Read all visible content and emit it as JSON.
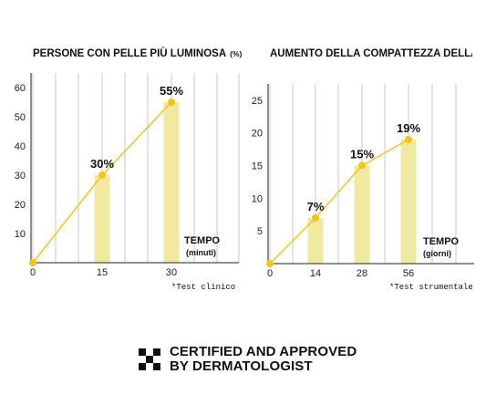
{
  "colors": {
    "bar": "#f2e9a1",
    "line": "#f4c518",
    "grid": "#c8c8c8",
    "axis": "#222222",
    "text": "#111111"
  },
  "chart_data": [
    {
      "type": "bar",
      "title": "PERSONE CON PELLE PIÙ LUMINOSA",
      "title_unit": "(%)",
      "xlabel": "TEMPO",
      "xunit": "(minuti)",
      "x": [
        0,
        15,
        30
      ],
      "series": [
        {
          "values": [
            0,
            30,
            55
          ]
        }
      ],
      "data_labels": [
        "",
        "30%",
        "55%"
      ],
      "yticks": [
        10,
        20,
        30,
        40,
        50,
        60
      ],
      "xticks": [
        "0",
        "15",
        "30"
      ],
      "ylim": [
        0,
        65
      ],
      "footnote": "*Test clinico",
      "overlay": "line"
    },
    {
      "type": "bar",
      "title": "AUMENTO DELLA COMPATTEZZA DELLA PELLE (%)",
      "xlabel": "TEMPO",
      "xunit": "(giorni)",
      "x": [
        0,
        14,
        28,
        56
      ],
      "series": [
        {
          "values": [
            0,
            7,
            15,
            19
          ]
        }
      ],
      "data_labels": [
        "",
        "7%",
        "15%",
        "19%"
      ],
      "yticks": [
        5,
        10,
        15,
        20,
        25
      ],
      "xticks": [
        "0",
        "14",
        "28",
        "56"
      ],
      "ylim": [
        0,
        27.5
      ],
      "footnote": "*Test strumentale",
      "overlay": "line"
    }
  ],
  "certification": {
    "line1": "CERTIFIED AND APPROVED",
    "line2": "BY DERMATOLOGIST",
    "icon": "checker-icon"
  }
}
